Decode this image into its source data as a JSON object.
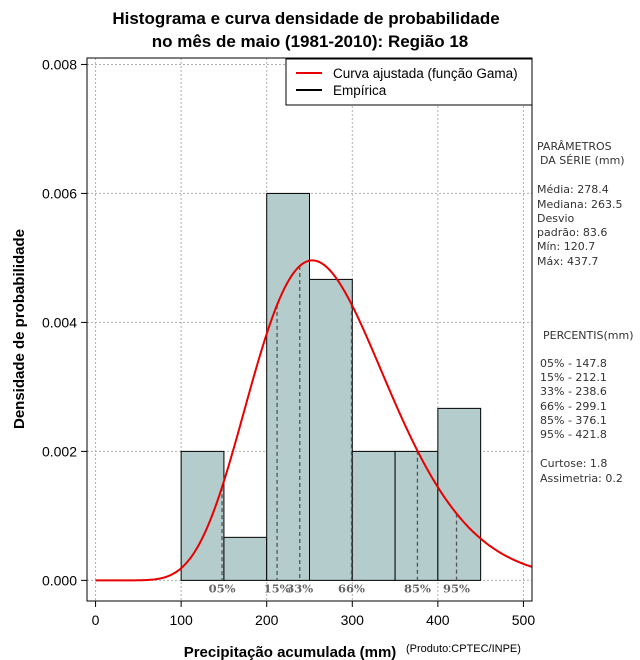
{
  "chart_data": {
    "type": "histogram",
    "title_line1": "Histograma e curva densidade de probabilidade",
    "title_line2": "no mês de maio (1981-2010): Região 18",
    "xlabel": "Precipitação acumulada (mm)",
    "ylabel": "Densidade de probabilidade",
    "credit": "(Produto:CPTEC/INPE)",
    "xlim": [
      -10,
      510
    ],
    "ylim": [
      -0.00032,
      0.0081
    ],
    "x_ticks": [
      0,
      100,
      200,
      300,
      400,
      500
    ],
    "y_ticks": [
      0,
      0.002,
      0.004,
      0.006,
      0.008
    ],
    "y_tick_labels": [
      "0.000",
      "0.002",
      "0.004",
      "0.006",
      "0.008"
    ],
    "histogram": {
      "bins": [
        {
          "start": 100,
          "end": 150,
          "density": 0.002
        },
        {
          "start": 150,
          "end": 200,
          "density": 0.000667
        },
        {
          "start": 200,
          "end": 250,
          "density": 0.006
        },
        {
          "start": 250,
          "end": 300,
          "density": 0.004667
        },
        {
          "start": 300,
          "end": 350,
          "density": 0.002
        },
        {
          "start": 350,
          "end": 400,
          "density": 0.002
        },
        {
          "start": 400,
          "end": 450,
          "density": 0.002667
        }
      ],
      "fill": "#b4cccc"
    },
    "gamma_curve": {
      "name": "Curva ajustada (função Gama)",
      "mean": 278.4,
      "sd": 83.6,
      "color": "#e80000"
    },
    "empirical": {
      "name": "Empírica",
      "color": "#000000"
    },
    "percentile_markers": [
      {
        "label": "05%",
        "value": 147.8
      },
      {
        "label": "15%",
        "value": 212.1
      },
      {
        "label": "33%",
        "value": 238.6
      },
      {
        "label": "66%",
        "value": 299.1
      },
      {
        "label": "85%",
        "value": 376.1
      },
      {
        "label": "95%",
        "value": 421.8
      }
    ]
  },
  "side_panel": {
    "params_title_1": "PARÂMETROS",
    "params_title_2": "DA SÉRIE (mm)",
    "media": "Média:  278.4",
    "mediana": "Mediana:  263.5",
    "desvio_1": "Desvio",
    "desvio_2": "padrão:  83.6",
    "min": "Mín:  120.7",
    "max": "Máx:  437.7",
    "percentis_title": "PERCENTIS(mm)",
    "p05": "05% -  147.8",
    "p15": "15% -  212.1",
    "p33": "33% -  238.6",
    "p66": "66% -  299.1",
    "p85": "85% -  376.1",
    "p95": "95% -  421.8",
    "curtose": "Curtose:  1.8",
    "assimetria": "Assimetria:  0.2"
  }
}
